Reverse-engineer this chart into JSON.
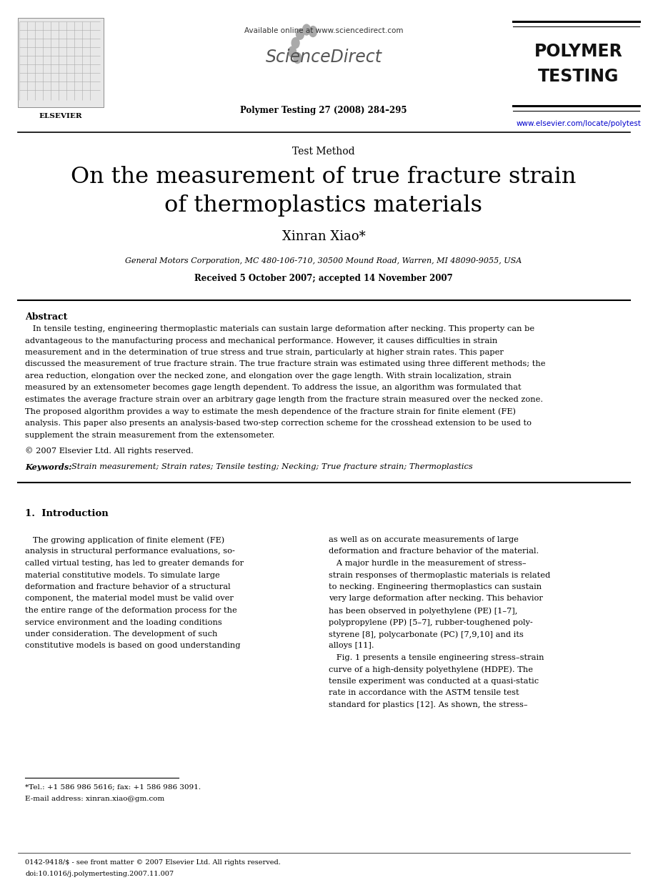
{
  "page_width": 9.07,
  "page_height": 12.38,
  "bg_color": "#ffffff",
  "available_online": "Available online at www.sciencedirect.com",
  "sciencedirect_text": "ScienceDirect",
  "journal_bold": "Polymer Testing 27 (2008) 284–295",
  "polymer_testing_line1": "POLYMER",
  "polymer_testing_line2": "TESTING",
  "url": "www.elsevier.com/locate/polytest",
  "elsevier_label": "ELSEVIER",
  "section_label": "Test Method",
  "title_line1": "On the measurement of true fracture strain",
  "title_line2": "of thermoplastics materials",
  "author": "Xinran Xiao*",
  "affiliation": "General Motors Corporation, MC 480-106-710, 30500 Mound Road, Warren, MI 48090-9055, USA",
  "received": "Received 5 October 2007; accepted 14 November 2007",
  "abstract_label": "Abstract",
  "abstract_text": "In tensile testing, engineering thermoplastic materials can sustain large deformation after necking. This property can be advantageous to the manufacturing process and mechanical performance. However, it causes difficulties in strain measurement and in the determination of true stress and true strain, particularly at higher strain rates. This paper discussed the measurement of true fracture strain. The true fracture strain was estimated using three different methods; the area reduction, elongation over the necked zone, and elongation over the gage length. With strain localization, strain measured by an extensometer becomes gage length dependent. To address the issue, an algorithm was formulated that estimates the average fracture strain over an arbitrary gage length from the fracture strain measured over the necked zone. The proposed algorithm provides a way to estimate the mesh dependence of the fracture strain for finite element (FE) analysis. This paper also presents an analysis-based two-step correction scheme for the crosshead extension to be used to supplement the strain measurement from the extensometer.",
  "copyright": "© 2007 Elsevier Ltd. All rights reserved.",
  "keywords_label": "Keywords:",
  "keywords_text": "Strain measurement; Strain rates; Tensile testing; Necking; True fracture strain; Thermoplastics",
  "intro_heading": "1.  Introduction",
  "intro_col1_para1": "   The growing application of finite element (FE) analysis in structural performance evaluations, so-called virtual testing, has led to greater demands for material constitutive models. To simulate large deformation and fracture behavior of a structural component, the material model must be valid over the entire range of the deformation process for the service environment and the loading conditions under consideration. The development of such constitutive models is based on good understanding",
  "intro_col2_para1": "as well as on accurate measurements of large deformation and fracture behavior of the material.",
  "intro_col2_para2": "   A major hurdle in the measurement of stress–strain responses of thermoplastic materials is related to necking. Engineering thermoplastics can sustain very large deformation after necking. This behavior has been observed in polyethylene (PE) [1–7], polypropylene (PP) [5–7], rubber-toughened poly-styrene [8], polycarbonate (PC) [7,9,10] and its alloys [11].",
  "intro_col2_para3": "   Fig. 1 presents a tensile engineering stress–strain curve of a high-density polyethylene (HDPE). The tensile experiment was conducted at a quasi-static rate in accordance with the ASTM tensile test standard for plastics [12]. As shown, the stress–",
  "footnote1": "*Tel.: +1 586 986 5616; fax: +1 586 986 3091.",
  "footnote2": "E-mail address: xinran.xiao@gm.com",
  "footer1": "0142-9418/$ - see front matter © 2007 Elsevier Ltd. All rights reserved.",
  "footer2": "doi:10.1016/j.polymertesting.2007.11.007"
}
